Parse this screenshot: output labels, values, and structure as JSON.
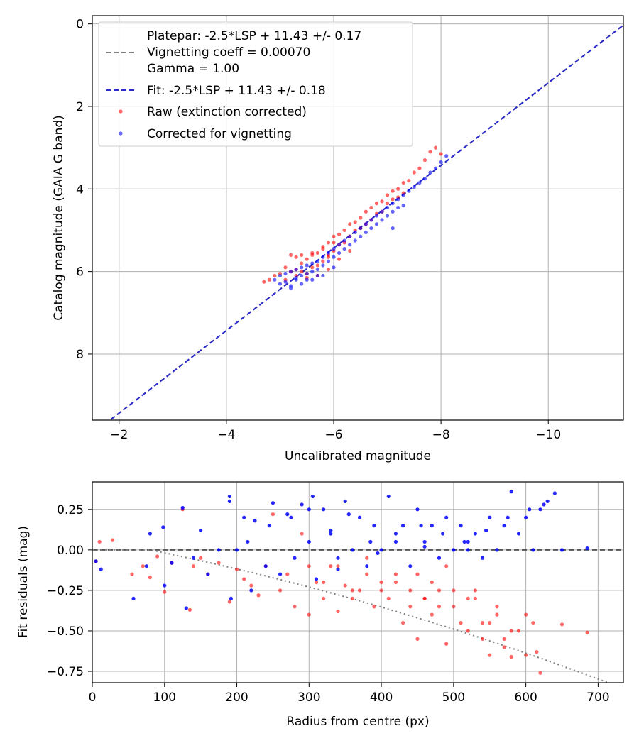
{
  "chart_data": [
    {
      "type": "scatter",
      "xlabel": "Uncalibrated magnitude",
      "ylabel": "Catalog magnitude (GAIA G band)",
      "xlim": [
        -1.5,
        -11.4
      ],
      "ylim": [
        9.6,
        -0.2
      ],
      "x_inverted": true,
      "y_inverted": true,
      "xticks": [
        -2,
        -4,
        -6,
        -8,
        -10
      ],
      "xtick_labels": [
        "−2",
        "−4",
        "−6",
        "−8",
        "−10"
      ],
      "yticks": [
        0,
        2,
        4,
        6,
        8
      ],
      "ytick_labels": [
        "0",
        "2",
        "4",
        "6",
        "8"
      ],
      "grid": true,
      "legend_placement": "upper-left",
      "series": [
        {
          "name": "Platepar: -2.5*LSP + 11.43 +/- 0.17\nVignetting coeff = 0.00070\nGamma = 1.00",
          "kind": "line",
          "style": "dashed",
          "color": "#808080",
          "slope": 1.0,
          "intercept": 11.43
        },
        {
          "name": "Fit: -2.5*LSP + 11.43 +/- 0.18",
          "kind": "line",
          "style": "dashed",
          "color": "#2b2bcc",
          "slope": 1.0,
          "intercept": 11.43
        },
        {
          "name": "Raw (extinction corrected)",
          "kind": "scatter",
          "color": "#ff0000",
          "x": [
            -4.7,
            -4.8,
            -4.9,
            -5.0,
            -5.1,
            -5.1,
            -5.2,
            -5.3,
            -5.3,
            -5.4,
            -5.4,
            -5.5,
            -5.5,
            -5.6,
            -5.6,
            -5.7,
            -5.7,
            -5.8,
            -5.8,
            -5.9,
            -5.9,
            -6.0,
            -6.0,
            -6.1,
            -6.1,
            -6.2,
            -6.2,
            -6.3,
            -6.3,
            -6.4,
            -6.4,
            -6.5,
            -6.5,
            -6.6,
            -6.6,
            -6.7,
            -6.7,
            -6.8,
            -6.8,
            -6.9,
            -6.9,
            -7.0,
            -7.0,
            -7.1,
            -7.1,
            -7.2,
            -7.2,
            -7.3,
            -7.3,
            -7.4,
            -7.5,
            -7.6,
            -7.7,
            -7.8,
            -7.9,
            -8.0,
            -5.2,
            -5.4,
            -5.6,
            -5.8,
            -6.0,
            -5.5,
            -5.7,
            -5.9,
            -6.1,
            -6.3,
            -5.3,
            -5.9
          ],
          "y": [
            6.25,
            6.2,
            6.1,
            6.05,
            6.2,
            5.9,
            6.0,
            5.65,
            6.1,
            5.8,
            6.0,
            5.7,
            6.05,
            5.6,
            5.9,
            5.55,
            5.85,
            5.4,
            5.75,
            5.3,
            5.6,
            5.15,
            5.5,
            5.1,
            5.35,
            5.0,
            5.3,
            4.85,
            5.15,
            4.8,
            5.0,
            4.7,
            4.95,
            4.55,
            4.85,
            4.45,
            4.75,
            4.35,
            4.6,
            4.3,
            4.55,
            4.15,
            4.35,
            4.05,
            4.25,
            4.0,
            4.2,
            3.85,
            4.1,
            3.8,
            3.6,
            3.5,
            3.3,
            3.1,
            3.0,
            3.15,
            5.6,
            5.6,
            5.55,
            5.45,
            5.3,
            6.15,
            6.1,
            5.95,
            5.7,
            5.5,
            5.95,
            5.65
          ]
        },
        {
          "name": "Corrected for vignetting",
          "kind": "scatter",
          "color": "#0000ff",
          "x": [
            -4.9,
            -5.0,
            -5.0,
            -5.1,
            -5.1,
            -5.2,
            -5.2,
            -5.3,
            -5.3,
            -5.4,
            -5.4,
            -5.5,
            -5.5,
            -5.6,
            -5.6,
            -5.7,
            -5.7,
            -5.8,
            -5.8,
            -5.9,
            -5.9,
            -6.0,
            -6.0,
            -6.1,
            -6.1,
            -6.2,
            -6.2,
            -6.3,
            -6.3,
            -6.4,
            -6.4,
            -6.5,
            -6.5,
            -6.6,
            -6.6,
            -6.7,
            -6.7,
            -6.8,
            -6.8,
            -6.9,
            -6.9,
            -7.0,
            -7.0,
            -7.1,
            -7.1,
            -7.2,
            -7.2,
            -7.3,
            -7.4,
            -7.5,
            -7.6,
            -7.7,
            -7.8,
            -7.9,
            -8.0,
            -8.1,
            -5.2,
            -5.4,
            -5.6,
            -5.8,
            -6.0,
            -5.3,
            -5.5,
            -5.7,
            -7.3,
            -7.1
          ],
          "y": [
            6.2,
            6.1,
            6.3,
            6.05,
            6.25,
            6.0,
            6.35,
            5.95,
            6.2,
            5.9,
            6.1,
            5.85,
            6.05,
            5.8,
            6.0,
            5.75,
            5.95,
            5.65,
            5.85,
            5.55,
            5.75,
            5.45,
            5.65,
            5.35,
            5.55,
            5.25,
            5.45,
            5.15,
            5.35,
            5.05,
            5.25,
            4.95,
            5.15,
            4.85,
            5.05,
            4.75,
            4.95,
            4.65,
            4.85,
            4.55,
            4.75,
            4.45,
            4.65,
            4.35,
            4.55,
            4.25,
            4.45,
            4.15,
            4.05,
            3.95,
            3.85,
            3.75,
            3.6,
            3.5,
            3.35,
            3.2,
            6.4,
            6.3,
            6.2,
            6.1,
            5.9,
            6.15,
            6.2,
            6.1,
            4.4,
            4.95
          ]
        }
      ]
    },
    {
      "type": "scatter",
      "xlabel": "Radius from centre (px)",
      "ylabel": "Fit residuals (mag)",
      "xlim": [
        0,
        735
      ],
      "ylim": [
        -0.82,
        0.42
      ],
      "xticks": [
        0,
        100,
        200,
        300,
        400,
        500,
        600,
        700
      ],
      "xtick_labels": [
        "0",
        "100",
        "200",
        "300",
        "400",
        "500",
        "600",
        "700"
      ],
      "yticks": [
        0.25,
        0.0,
        -0.25,
        -0.5,
        -0.75
      ],
      "ytick_labels": [
        "0.25",
        "0.00",
        "−0.25",
        "−0.50",
        "−0.75"
      ],
      "grid": true,
      "reference_lines": [
        {
          "kind": "hline",
          "y": 0.0,
          "style": "dashed",
          "color": "#555555"
        },
        {
          "kind": "curve",
          "style": "dotted",
          "color": "#808080",
          "coeff": 0.0007,
          "x_start": 80,
          "x_end": 735
        }
      ],
      "series": [
        {
          "name": "Raw (extinction corrected)",
          "color": "#ff0000",
          "x": [
            5,
            10,
            28,
            55,
            70,
            80,
            90,
            100,
            110,
            125,
            135,
            140,
            150,
            160,
            175,
            190,
            200,
            210,
            220,
            230,
            240,
            250,
            260,
            270,
            280,
            290,
            300,
            310,
            320,
            330,
            340,
            350,
            360,
            370,
            380,
            390,
            400,
            410,
            420,
            430,
            440,
            450,
            460,
            470,
            480,
            490,
            500,
            510,
            520,
            530,
            540,
            550,
            560,
            570,
            580,
            590,
            600,
            610,
            620,
            650,
            685,
            300,
            320,
            340,
            360,
            380,
            400,
            420,
            440,
            460,
            480,
            500,
            520,
            540,
            560,
            580,
            600,
            615,
            450,
            470,
            490,
            530,
            550,
            570
          ],
          "y": [
            -0.07,
            0.05,
            0.06,
            -0.15,
            -0.1,
            -0.17,
            -0.04,
            -0.26,
            -0.08,
            0.25,
            -0.37,
            -0.1,
            -0.05,
            -0.15,
            -0.08,
            -0.32,
            -0.12,
            -0.18,
            -0.22,
            -0.28,
            -0.1,
            0.22,
            -0.25,
            -0.15,
            -0.35,
            0.1,
            -0.4,
            -0.2,
            -0.3,
            -0.1,
            -0.38,
            -0.22,
            -0.3,
            -0.25,
            -0.05,
            -0.35,
            -0.2,
            -0.3,
            -0.15,
            -0.45,
            -0.25,
            -0.55,
            -0.3,
            -0.4,
            -0.35,
            -0.58,
            -0.25,
            -0.45,
            -0.5,
            -0.3,
            -0.55,
            -0.65,
            -0.4,
            -0.6,
            -0.66,
            -0.5,
            -0.65,
            -0.45,
            -0.76,
            -0.46,
            -0.51,
            -0.1,
            -0.2,
            -0.1,
            -0.25,
            -0.15,
            -0.25,
            -0.2,
            -0.35,
            -0.3,
            -0.25,
            -0.35,
            -0.3,
            -0.45,
            -0.35,
            -0.5,
            -0.4,
            -0.63,
            -0.15,
            -0.2,
            -0.1,
            -0.25,
            -0.45,
            -0.55
          ]
        },
        {
          "name": "Corrected for vignetting",
          "color": "#0000ff",
          "x": [
            5,
            12,
            57,
            75,
            80,
            98,
            100,
            110,
            125,
            130,
            140,
            150,
            160,
            175,
            190,
            192,
            200,
            210,
            220,
            225,
            240,
            250,
            260,
            270,
            280,
            290,
            300,
            305,
            310,
            320,
            330,
            340,
            350,
            360,
            370,
            380,
            390,
            400,
            410,
            420,
            430,
            440,
            450,
            460,
            470,
            480,
            490,
            500,
            510,
            520,
            530,
            540,
            550,
            560,
            570,
            580,
            590,
            600,
            610,
            620,
            630,
            640,
            650,
            685,
            190,
            215,
            245,
            275,
            300,
            330,
            355,
            385,
            420,
            455,
            485,
            515,
            545,
            575,
            605,
            625,
            340,
            395,
            460,
            520
          ],
          "y": [
            -0.07,
            -0.12,
            -0.3,
            -0.1,
            0.1,
            0.14,
            -0.22,
            -0.08,
            0.26,
            -0.36,
            -0.05,
            0.12,
            -0.15,
            0.0,
            0.33,
            -0.3,
            0.0,
            0.2,
            -0.25,
            0.18,
            -0.1,
            0.29,
            -0.15,
            0.22,
            -0.05,
            0.28,
            0.05,
            0.33,
            -0.18,
            0.25,
            0.1,
            -0.12,
            0.3,
            0.0,
            0.2,
            -0.1,
            0.15,
            0.0,
            0.33,
            0.05,
            0.15,
            -0.1,
            0.25,
            0.05,
            0.15,
            -0.05,
            0.2,
            0.0,
            0.15,
            0.05,
            0.1,
            -0.05,
            0.2,
            0.0,
            0.15,
            0.36,
            0.1,
            0.2,
            0.0,
            0.25,
            0.3,
            0.35,
            0.0,
            0.01,
            0.3,
            0.05,
            0.15,
            0.2,
            0.25,
            0.12,
            0.22,
            0.05,
            0.1,
            0.15,
            0.1,
            0.05,
            0.12,
            0.2,
            0.25,
            0.28,
            -0.05,
            -0.02,
            0.02,
            0.0
          ]
        }
      ]
    }
  ]
}
